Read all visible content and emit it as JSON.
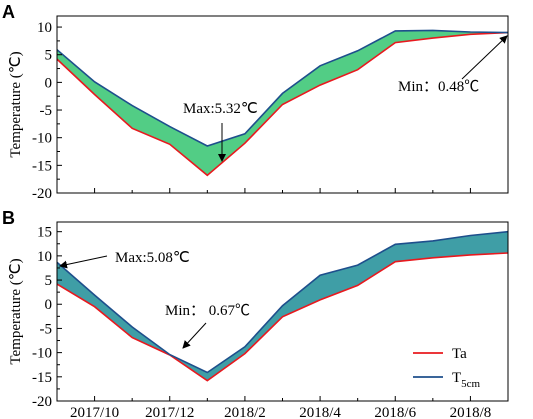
{
  "colors": {
    "ta_line": "#e8191e",
    "t5_line": "#1e4f8c",
    "panel_a_fill": "#52cd85",
    "panel_b_fill": "#3f9ea6"
  },
  "chart_data": [
    {
      "panel": "A",
      "type": "area",
      "ylabel": "Temperature (℃)",
      "ylim": [
        -20,
        12
      ],
      "yticks": [
        -20,
        -15,
        -10,
        -5,
        0,
        5,
        10
      ],
      "x": [
        0,
        1,
        2,
        3,
        4,
        5,
        6,
        7,
        8,
        9,
        10,
        11,
        12
      ],
      "series": [
        {
          "name": "Ta",
          "values": [
            4.2,
            -2.2,
            -8.3,
            -11.2,
            -16.8,
            -11.0,
            -4.0,
            -0.5,
            2.3,
            7.2,
            8.0,
            8.7,
            9.0
          ]
        },
        {
          "name": "T",
          "values": [
            5.9,
            0.1,
            -4.2,
            -8.0,
            -11.5,
            -9.3,
            -2.0,
            3.0,
            5.7,
            9.3,
            9.4,
            9.1,
            9.0
          ]
        }
      ],
      "annotations": [
        {
          "text": "Max:5.32℃"
        },
        {
          "text": "Min：0.48℃"
        }
      ]
    },
    {
      "panel": "B",
      "type": "area",
      "ylabel": "Temperature (℃)",
      "ylim": [
        -20,
        17
      ],
      "yticks": [
        -20,
        -15,
        -10,
        -5,
        0,
        5,
        10,
        15
      ],
      "xticklabels": [
        "2017/10",
        "2017/12",
        "2018/2",
        "2018/4",
        "2018/6",
        "2018/8"
      ],
      "x": [
        -0.3,
        1,
        2,
        3,
        4,
        5,
        6,
        7,
        8,
        9,
        10,
        11,
        12
      ],
      "series": [
        {
          "name": "Ta",
          "values": [
            5.6,
            -0.5,
            -6.9,
            -10.5,
            -15.8,
            -10.2,
            -2.6,
            0.9,
            3.9,
            8.8,
            9.6,
            10.2,
            10.6
          ]
        },
        {
          "name": "T",
          "values": [
            10.7,
            1.9,
            -4.7,
            -10.4,
            -14.1,
            -8.8,
            -0.3,
            6.0,
            8.1,
            12.4,
            13.1,
            14.2,
            15.0
          ]
        }
      ],
      "annotations": [
        {
          "text": "Max:5.08℃"
        },
        {
          "text": "Min： 0.67℃"
        }
      ],
      "legend": {
        "position": "bottom-right",
        "items": [
          {
            "label": "Ta",
            "sub": ""
          },
          {
            "label": "T",
            "sub": "5cm"
          }
        ]
      }
    }
  ]
}
